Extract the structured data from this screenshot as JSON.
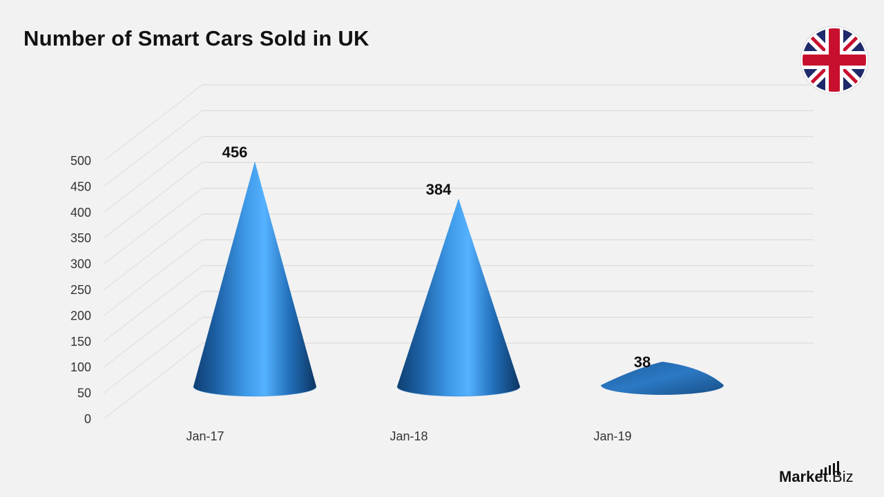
{
  "chart_data": {
    "type": "bar",
    "subtype": "3d-cone",
    "title": "Number of Smart Cars Sold in UK",
    "categories": [
      "Jan-17",
      "Jan-18",
      "Jan-19"
    ],
    "values": [
      456,
      384,
      38
    ],
    "data_labels": [
      "456",
      "384",
      "38"
    ],
    "ylim": [
      0,
      500
    ],
    "yticks": [
      "0",
      "50",
      "100",
      "150",
      "200",
      "250",
      "300",
      "350",
      "400",
      "450",
      "500"
    ],
    "xlabel": "",
    "ylabel": "",
    "grid": true,
    "legend": "none",
    "bar_color": "#3a8fd8"
  },
  "flag": {
    "icon": "uk-flag-icon"
  },
  "brand": {
    "name_part1": "Market",
    "name_part2": ".Biz"
  }
}
